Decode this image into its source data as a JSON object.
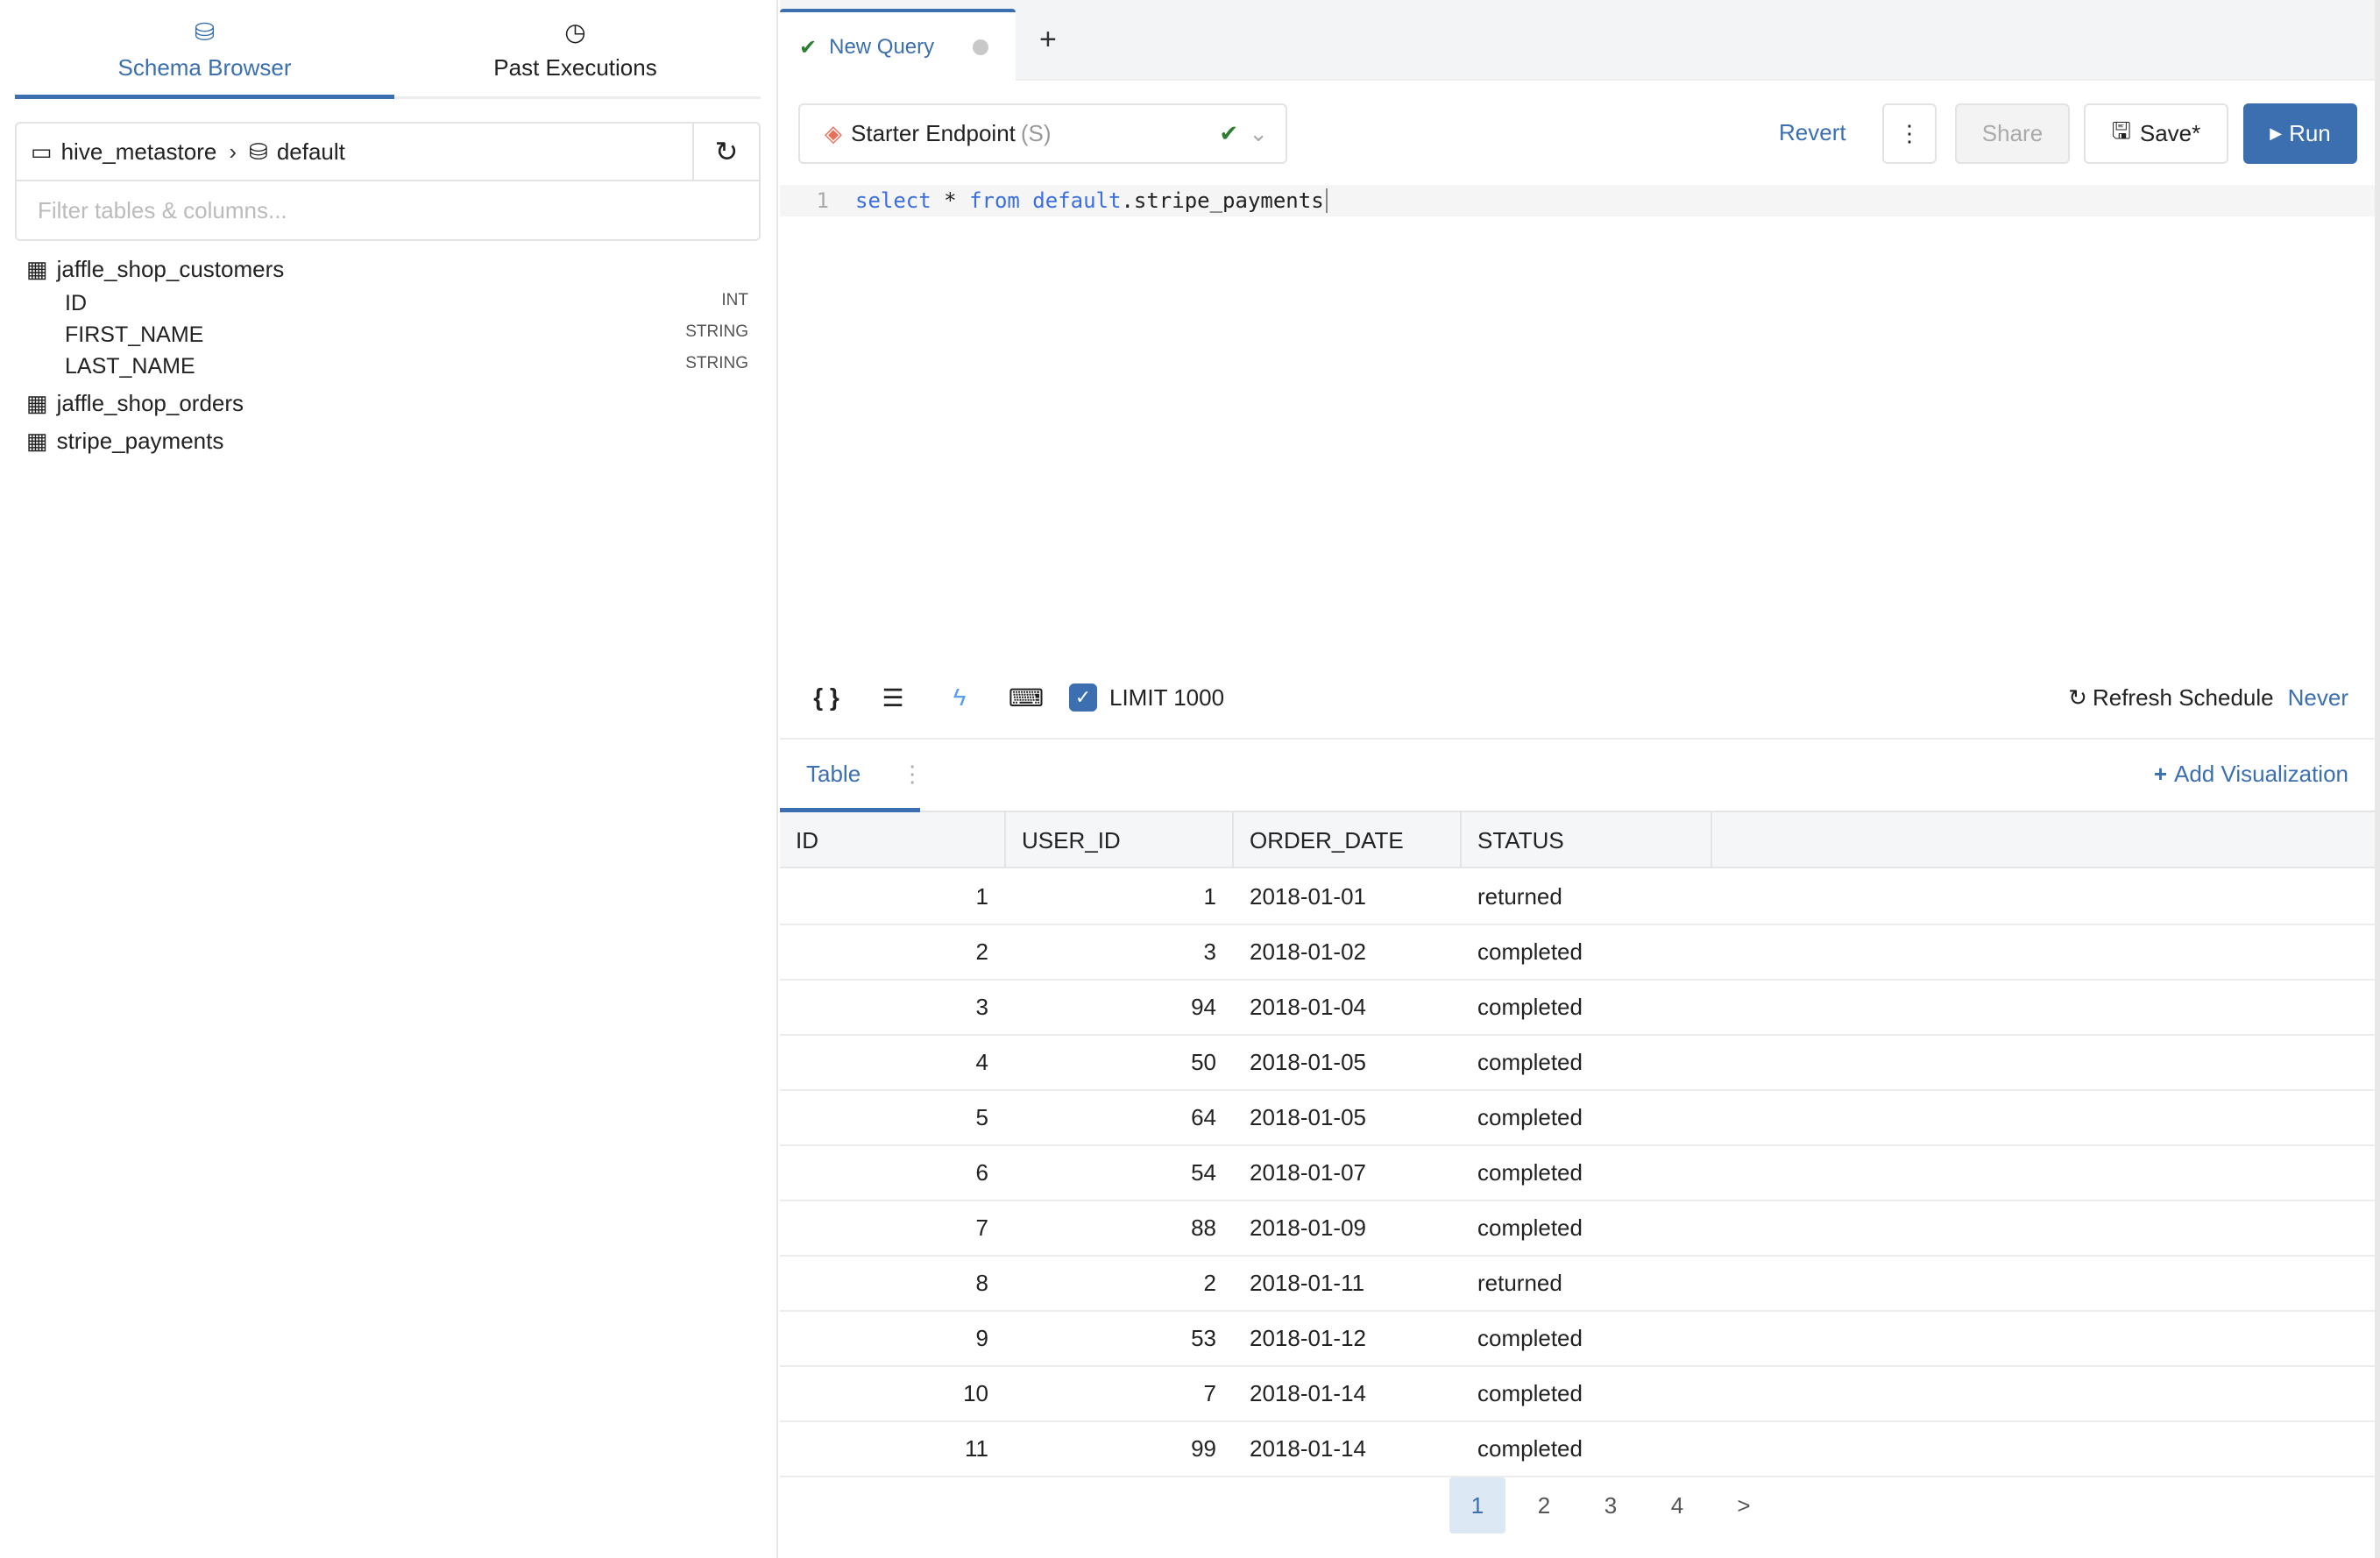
{
  "left_panel": {
    "tabs": [
      {
        "label": "Schema Browser",
        "icon": "database-icon",
        "active": true
      },
      {
        "label": "Past Executions",
        "icon": "clock-icon",
        "active": false
      }
    ],
    "breadcrumb": {
      "catalog": "hive_metastore",
      "schema": "default"
    },
    "filter_placeholder": "Filter tables & columns...",
    "tables": [
      {
        "name": "jaffle_shop_customers",
        "columns": [
          {
            "name": "ID",
            "type": "INT"
          },
          {
            "name": "FIRST_NAME",
            "type": "STRING"
          },
          {
            "name": "LAST_NAME",
            "type": "STRING"
          }
        ]
      },
      {
        "name": "jaffle_shop_orders"
      },
      {
        "name": "stripe_payments"
      }
    ]
  },
  "query_tab": {
    "label": "New Query",
    "status": "success"
  },
  "toolbar": {
    "endpoint": "Starter Endpoint",
    "endpoint_size": "(S)",
    "revert": "Revert",
    "share": "Share",
    "save": "Save*",
    "run": "Run"
  },
  "editor": {
    "line_number": "1",
    "kw1": "select",
    "star": " * ",
    "kw2": "from",
    "schema": " default",
    "rest": ".stripe_payments"
  },
  "editor_toolbar": {
    "limit_label": "LIMIT 1000",
    "limit_checked": true,
    "refresh_label": "Refresh Schedule",
    "refresh_value": "Never"
  },
  "results": {
    "tab": "Table",
    "add_viz": "Add Visualization",
    "columns": [
      "ID",
      "USER_ID",
      "ORDER_DATE",
      "STATUS"
    ],
    "rows": [
      [
        "1",
        "1",
        "2018-01-01",
        "returned"
      ],
      [
        "2",
        "3",
        "2018-01-02",
        "completed"
      ],
      [
        "3",
        "94",
        "2018-01-04",
        "completed"
      ],
      [
        "4",
        "50",
        "2018-01-05",
        "completed"
      ],
      [
        "5",
        "64",
        "2018-01-05",
        "completed"
      ],
      [
        "6",
        "54",
        "2018-01-07",
        "completed"
      ],
      [
        "7",
        "88",
        "2018-01-09",
        "completed"
      ],
      [
        "8",
        "2",
        "2018-01-11",
        "returned"
      ],
      [
        "9",
        "53",
        "2018-01-12",
        "completed"
      ],
      [
        "10",
        "7",
        "2018-01-14",
        "completed"
      ],
      [
        "11",
        "99",
        "2018-01-14",
        "completed"
      ]
    ],
    "pages": [
      "1",
      "2",
      "3",
      "4"
    ],
    "current_page": "1",
    "next": ">"
  },
  "colors": {
    "accent": "#3b6fb0",
    "success": "#2e7d32",
    "endpoint_icon": "#e8705a"
  }
}
